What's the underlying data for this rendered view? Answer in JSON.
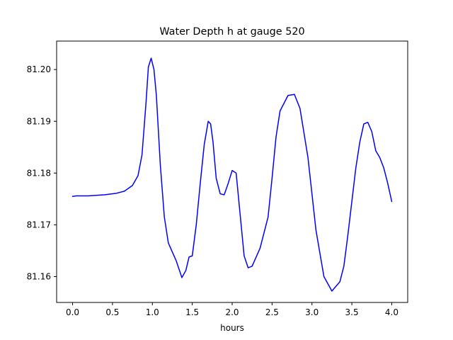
{
  "chart_data": {
    "type": "line",
    "title": "Water Depth h at gauge 520",
    "xlabel": "hours",
    "ylabel": "",
    "xlim": [
      -0.2,
      4.2
    ],
    "ylim": [
      81.155,
      81.2055
    ],
    "xticks": [
      0.0,
      0.5,
      1.0,
      1.5,
      2.0,
      2.5,
      3.0,
      3.5,
      4.0
    ],
    "xtick_labels": [
      "0.0",
      "0.5",
      "1.0",
      "1.5",
      "2.0",
      "2.5",
      "3.0",
      "3.5",
      "4.0"
    ],
    "yticks": [
      81.16,
      81.17,
      81.18,
      81.19,
      81.2
    ],
    "ytick_labels": [
      "81.16",
      "81.17",
      "81.18",
      "81.19",
      "81.20"
    ],
    "grid": false,
    "series": [
      {
        "color": "#0000ff",
        "x": [
          0.0,
          0.05,
          0.2,
          0.4,
          0.55,
          0.65,
          0.75,
          0.82,
          0.87,
          0.92,
          0.95,
          0.985,
          1.02,
          1.05,
          1.1,
          1.15,
          1.2,
          1.3,
          1.37,
          1.42,
          1.46,
          1.5,
          1.55,
          1.6,
          1.65,
          1.7,
          1.73,
          1.76,
          1.8,
          1.85,
          1.9,
          1.95,
          2.0,
          2.05,
          2.1,
          2.15,
          2.2,
          2.25,
          2.35,
          2.45,
          2.5,
          2.55,
          2.6,
          2.7,
          2.78,
          2.85,
          2.95,
          3.05,
          3.15,
          3.25,
          3.35,
          3.4,
          3.45,
          3.5,
          3.55,
          3.6,
          3.65,
          3.7,
          3.75,
          3.8,
          3.85,
          3.9,
          3.95,
          4.0
        ],
        "y": [
          81.1755,
          81.1756,
          81.1756,
          81.1758,
          81.1761,
          81.1765,
          81.1776,
          81.1795,
          81.1835,
          81.1935,
          81.2005,
          81.2022,
          81.2,
          81.195,
          81.1815,
          81.1715,
          81.1665,
          81.163,
          81.1598,
          81.1612,
          81.1638,
          81.164,
          81.17,
          81.178,
          81.1855,
          81.19,
          81.1895,
          81.186,
          81.179,
          81.176,
          81.1758,
          81.178,
          81.1805,
          81.18,
          81.172,
          81.164,
          81.1617,
          81.162,
          81.1655,
          81.1715,
          81.179,
          81.187,
          81.192,
          81.195,
          81.1952,
          81.1925,
          81.183,
          81.169,
          81.16,
          81.1572,
          81.159,
          81.162,
          81.168,
          81.1745,
          81.181,
          81.186,
          81.1895,
          81.1898,
          81.188,
          81.1843,
          81.183,
          81.181,
          81.178,
          81.1745
        ]
      }
    ]
  }
}
